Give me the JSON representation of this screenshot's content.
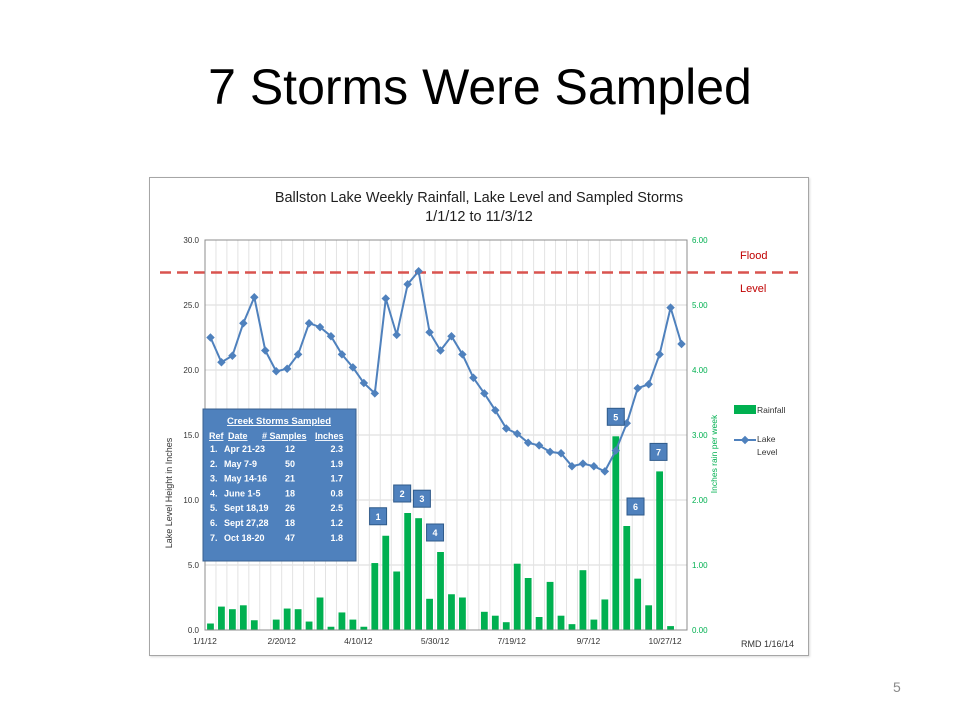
{
  "slide": {
    "title": "7 Storms Were Sampled",
    "page_number": "5"
  },
  "colors": {
    "lake_level": "#4f81bd",
    "rainfall": "#00b050",
    "flood_line": "#d9534f",
    "flood_text": "#c00000",
    "right_axis_text": "#00b050",
    "table_bg": "#4f81bd",
    "callout_bg": "#4f81bd"
  },
  "chart_data": {
    "type": "line",
    "title_line1": "Ballston Lake Weekly Rainfall, Lake Level and Sampled Storms",
    "title_line2": "1/1/12 to 11/3/12",
    "ylabel_left": "Lake Level Height in Inches",
    "ylabel_right": "Inches rain per week",
    "ylim_left": [
      0,
      30
    ],
    "ylim_right": [
      0,
      6
    ],
    "left_ticks": [
      "0.0",
      "5.0",
      "10.0",
      "15.0",
      "20.0",
      "25.0",
      "30.0"
    ],
    "right_ticks": [
      "0.00",
      "1.00",
      "2.00",
      "3.00",
      "4.00",
      "5.00",
      "6.00"
    ],
    "x_tick_labels": [
      "1/1/12",
      "2/20/12",
      "4/10/12",
      "5/30/12",
      "7/19/12",
      "9/7/12",
      "10/27/12"
    ],
    "grid": true,
    "flood_level": 27.5,
    "flood_label_1": "Flood",
    "flood_label_2": "Level",
    "credit": "RMD 1/16/14",
    "legend_rainfall": "Rainfall",
    "legend_lake_1": "Lake",
    "legend_lake_2": "Level",
    "series": [
      {
        "name": "Lake Level",
        "axis": "left",
        "values": [
          22.5,
          20.6,
          21.1,
          23.6,
          25.6,
          21.5,
          19.9,
          20.1,
          21.2,
          23.6,
          23.3,
          22.6,
          21.2,
          20.2,
          19.0,
          18.2,
          25.5,
          22.7,
          26.6,
          27.6,
          22.9,
          21.5,
          22.6,
          21.2,
          19.4,
          18.2,
          16.9,
          15.5,
          15.1,
          14.4,
          14.2,
          13.7,
          13.6,
          12.6,
          12.8,
          12.6,
          12.2,
          13.8,
          15.9,
          18.6,
          18.9,
          21.2,
          24.8,
          22.0
        ]
      },
      {
        "name": "Rainfall",
        "axis": "right",
        "values": [
          0.1,
          0.36,
          0.32,
          0.38,
          0.15,
          0.0,
          0.16,
          0.33,
          0.32,
          0.13,
          0.5,
          0.05,
          0.27,
          0.16,
          0.05,
          1.03,
          1.45,
          0.9,
          1.8,
          1.72,
          0.48,
          1.2,
          0.55,
          0.5,
          0.0,
          0.28,
          0.22,
          0.12,
          1.02,
          0.8,
          0.2,
          0.74,
          0.22,
          0.09,
          0.92,
          0.16,
          0.47,
          2.98,
          1.6,
          0.79,
          0.38,
          2.44,
          0.06,
          0.0
        ]
      }
    ],
    "storm_table": {
      "title": "Creek Storms Sampled",
      "headers": [
        "Ref",
        "Date",
        "# Samples",
        "Inches"
      ],
      "rows": [
        [
          "1.",
          "Apr 21-23",
          "12",
          "2.3"
        ],
        [
          "2.",
          "May 7-9",
          "50",
          "1.9"
        ],
        [
          "3.",
          "May 14-16",
          "21",
          "1.7"
        ],
        [
          "4.",
          "June 1-5",
          "18",
          "0.8"
        ],
        [
          "5.",
          "Sept 18,19",
          "26",
          "2.5"
        ],
        [
          "6.",
          "Sept 27,28",
          "18",
          "1.2"
        ],
        [
          "7.",
          "Oct 18-20",
          "47",
          "1.8"
        ]
      ]
    },
    "storm_markers": [
      {
        "label": "1",
        "week": 15.3
      },
      {
        "label": "2",
        "week": 17.5
      },
      {
        "label": "3",
        "week": 19.3
      },
      {
        "label": "4",
        "week": 20.5
      },
      {
        "label": "5",
        "week": 37.0
      },
      {
        "label": "6",
        "week": 38.8
      },
      {
        "label": "7",
        "week": 40.9
      }
    ]
  }
}
